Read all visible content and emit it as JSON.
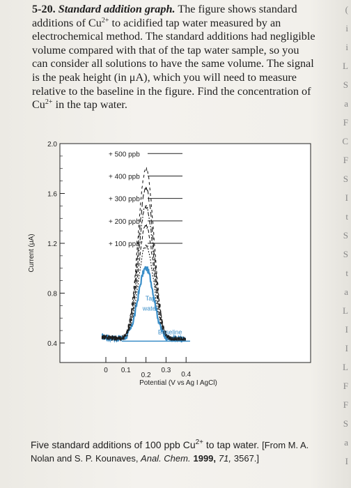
{
  "problem": {
    "number": "5-20.",
    "title": "Standard addition graph.",
    "lines": [
      [
        "The figure shows standard",
        ""
      ],
      [
        "additions of Cu",
        "2+",
        " to acidified tap water measured by an"
      ],
      [
        "electrochemical method. The standard additions had negligible"
      ],
      [
        "volume compared with that of the tap water sample, so you"
      ],
      [
        "can consider all solutions to have the same volume. The signal"
      ],
      [
        "is the peak height (in μA), which you will need to measure"
      ],
      [
        "relative to the baseline in the figure. Find the concentration of"
      ],
      [
        "Cu",
        "2+",
        " in the tap water."
      ]
    ]
  },
  "chart_data": {
    "type": "line",
    "xlabel": "Potential (V vs Ag I AgCl)",
    "ylabel": "Current (μA)",
    "x_ticks": [
      "0",
      "0.1",
      "0.2",
      "0.3",
      "0.4"
    ],
    "y_ticks": [
      "2.0",
      "1.6",
      "1.2",
      "0.8",
      "0.4"
    ],
    "ylim": [
      0.4,
      2.0
    ],
    "xlim": [
      0,
      0.45
    ],
    "legend": [
      "+ 500 ppb",
      "+ 400 ppb",
      "+ 300 ppb",
      "+ 200 ppb",
      "+ 100 ppb"
    ],
    "annotations": [
      "Tap water",
      "Baseline"
    ],
    "series": [
      {
        "name": "Tap water",
        "peak_potential": 0.2,
        "peak_current": 1.0,
        "color": "#3a8ec8"
      },
      {
        "name": "+ 100 ppb",
        "peak_potential": 0.2,
        "peak_current": 1.18
      },
      {
        "name": "+ 200 ppb",
        "peak_potential": 0.2,
        "peak_current": 1.34
      },
      {
        "name": "+ 300 ppb",
        "peak_potential": 0.2,
        "peak_current": 1.5
      },
      {
        "name": "+ 400 ppb",
        "peak_potential": 0.2,
        "peak_current": 1.64
      },
      {
        "name": "+ 500 ppb",
        "peak_potential": 0.2,
        "peak_current": 1.8
      }
    ],
    "baseline_current": 0.4
  },
  "caption": {
    "main_a": "Five standard additions of 100 ppb Cu",
    "main_sup": "2+",
    "main_b": " to tap water.",
    "src_a": "[From M. A.",
    "src_b": "Nolan and S. P. Kounaves, ",
    "journal": "Anal. Chem.",
    "year": "1999,",
    "volume": "71,",
    "pages": "3567.]"
  },
  "edge_letters": [
    "(",
    "i",
    "i",
    "L",
    "S",
    "a",
    "F",
    "C",
    "F",
    "S",
    "I",
    "t",
    "S",
    "S",
    "t",
    "a",
    "L",
    "I",
    "I",
    "L",
    "F",
    "F",
    "S",
    "a",
    "I"
  ],
  "colors": {
    "tap_water": "#3a8ec8",
    "axis": "#222222",
    "text": "#1e1e1e"
  }
}
